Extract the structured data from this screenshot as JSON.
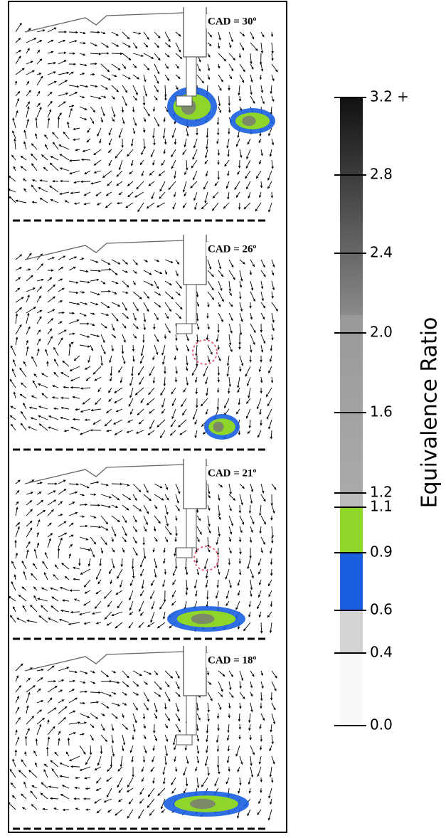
{
  "panels": [
    {
      "label": "CAD = 30º"
    },
    {
      "label": "CAD = 26º"
    },
    {
      "label": "CAD = 21º"
    },
    {
      "label": "CAD = 18º"
    }
  ],
  "colorbar": {
    "label": "Equivalence Ratio",
    "ticks": [
      {
        "value": 3.2,
        "label": "3.2 +"
      },
      2.8,
      2.4,
      {
        "value": 2,
        "label": "2.0"
      },
      1.6,
      1.2,
      1.1,
      0.9,
      0.6,
      0.4,
      {
        "value": 0,
        "label": "0.0"
      }
    ]
  }
}
